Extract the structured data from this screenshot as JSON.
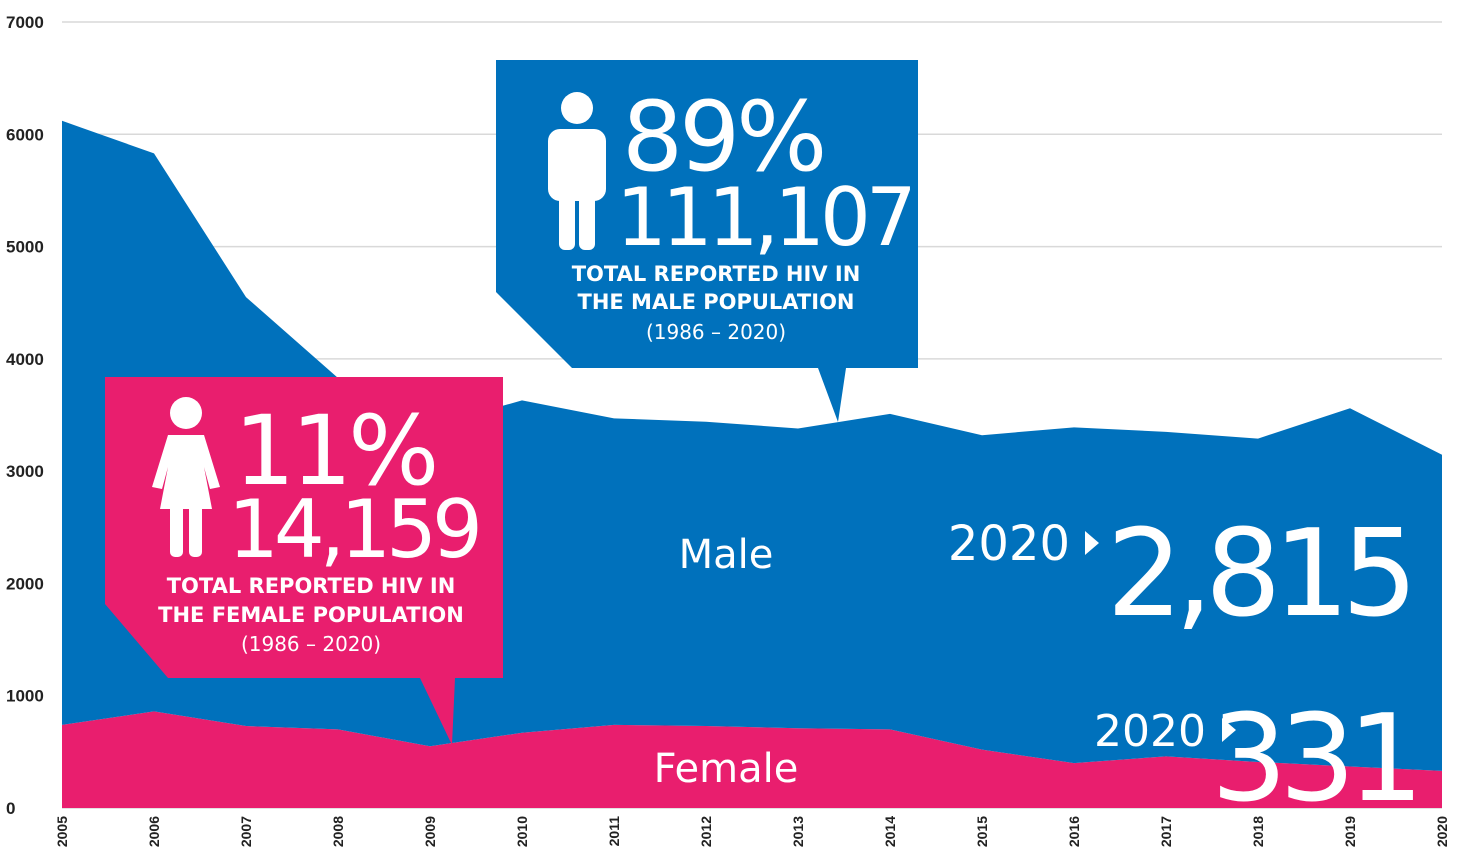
{
  "chart_data": {
    "type": "area",
    "stacked": true,
    "categories": [
      "2005",
      "2006",
      "2007",
      "2008",
      "2009",
      "2010",
      "2011",
      "2012",
      "2013",
      "2014",
      "2015",
      "2016",
      "2017",
      "2018",
      "2019",
      "2020"
    ],
    "series": [
      {
        "name": "Female",
        "color": "#e91e6e",
        "values": [
          740,
          860,
          730,
          700,
          550,
          670,
          740,
          730,
          710,
          700,
          520,
          400,
          460,
          410,
          370,
          331
        ]
      },
      {
        "name": "Male",
        "color": "#0071bc",
        "values": [
          5380,
          4970,
          3820,
          3130,
          2850,
          2960,
          2730,
          2710,
          2670,
          2810,
          2800,
          2990,
          2890,
          2880,
          3190,
          2815
        ]
      }
    ],
    "ylim": [
      0,
      7000
    ],
    "yticks": [
      0,
      1000,
      2000,
      3000,
      4000,
      5000,
      6000,
      7000
    ],
    "grid": true,
    "callouts": [
      {
        "percent": "89%",
        "total": "111,107",
        "lines": [
          "TOTAL REPORTED HIV IN",
          "THE MALE POPULATION",
          "(1986 – 2020)"
        ]
      },
      {
        "percent": "11%",
        "total": "14,159",
        "lines": [
          "TOTAL REPORTED HIV IN",
          "THE FEMALE POPULATION",
          "(1986 – 2020)"
        ]
      }
    ],
    "end_labels": [
      {
        "year": "2020",
        "label": "2,815"
      },
      {
        "year": "2020",
        "label": "331"
      }
    ]
  }
}
